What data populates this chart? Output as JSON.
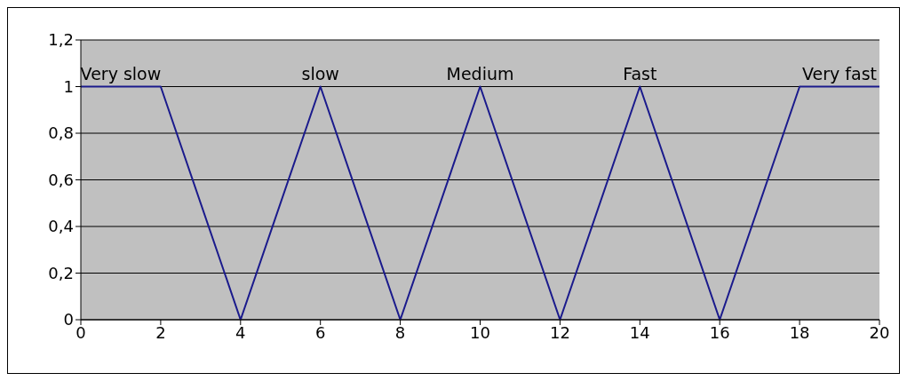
{
  "chart_data": {
    "type": "line",
    "x": [
      0,
      2,
      4,
      6,
      8,
      10,
      12,
      14,
      16,
      18,
      20
    ],
    "series": [
      {
        "color": "#1a1a8c",
        "values": [
          1,
          1,
          0,
          1,
          0,
          1,
          0,
          1,
          0,
          1,
          1
        ]
      }
    ],
    "xlim": [
      0,
      20
    ],
    "xticks": [
      0,
      2,
      4,
      6,
      8,
      10,
      12,
      14,
      16,
      18,
      20
    ],
    "ylim": [
      0,
      1.2
    ],
    "yticks": [
      0,
      {
        "value": 0.2,
        "label": "0,2"
      },
      {
        "value": 0.4,
        "label": "0,4"
      },
      {
        "value": 0.6,
        "label": "0,6"
      },
      {
        "value": 0.8,
        "label": "0,8"
      },
      1,
      {
        "value": 1.2,
        "label": "1,2"
      }
    ],
    "grid": "y",
    "legend": false,
    "marker": "none",
    "line_style": "solid",
    "annotations": [
      {
        "text": "Very slow",
        "x": 1,
        "y": 1
      },
      {
        "text": "slow",
        "x": 6,
        "y": 1
      },
      {
        "text": "Medium",
        "x": 10,
        "y": 1
      },
      {
        "text": "Fast",
        "x": 14,
        "y": 1
      },
      {
        "text": "Very fast",
        "x": 19,
        "y": 1
      }
    ]
  }
}
